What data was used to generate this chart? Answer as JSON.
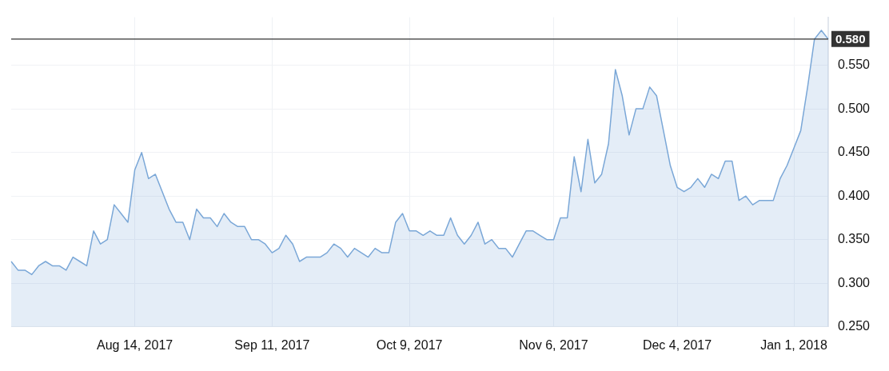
{
  "chart_data": {
    "type": "area",
    "categories": [
      null,
      null,
      null,
      null,
      null,
      null,
      null,
      null,
      null,
      null,
      null,
      null,
      null,
      null,
      null,
      null,
      null,
      null,
      "Aug 14, 2017",
      null,
      null,
      null,
      null,
      null,
      null,
      null,
      null,
      null,
      null,
      null,
      null,
      null,
      null,
      null,
      null,
      null,
      null,
      null,
      "Sep 11, 2017",
      null,
      null,
      null,
      null,
      null,
      null,
      null,
      null,
      null,
      null,
      null,
      null,
      null,
      null,
      null,
      null,
      null,
      null,
      null,
      "Oct 9, 2017",
      null,
      null,
      null,
      null,
      null,
      null,
      null,
      null,
      null,
      null,
      null,
      null,
      null,
      null,
      null,
      null,
      null,
      null,
      null,
      null,
      "Nov 6, 2017",
      null,
      null,
      null,
      null,
      null,
      null,
      null,
      null,
      null,
      null,
      null,
      null,
      null,
      null,
      null,
      null,
      null,
      "Dec 4, 2017",
      null,
      null,
      null,
      null,
      null,
      null,
      null,
      null,
      null,
      null,
      null,
      null,
      null,
      null,
      null,
      null,
      "Jan 1, 2018",
      null,
      null,
      null,
      null,
      null
    ],
    "series": [
      {
        "color": "#7aa7d7",
        "values": [
          0.325,
          0.315,
          0.315,
          0.31,
          0.32,
          0.325,
          0.32,
          0.32,
          0.315,
          0.33,
          0.325,
          0.32,
          0.36,
          0.345,
          0.35,
          0.39,
          0.38,
          0.37,
          0.43,
          0.45,
          0.42,
          0.425,
          0.405,
          0.385,
          0.37,
          0.37,
          0.35,
          0.385,
          0.375,
          0.375,
          0.365,
          0.38,
          0.37,
          0.365,
          0.365,
          0.35,
          0.35,
          0.345,
          0.335,
          0.34,
          0.355,
          0.345,
          0.325,
          0.33,
          0.33,
          0.33,
          0.335,
          0.345,
          0.34,
          0.33,
          0.34,
          0.335,
          0.33,
          0.34,
          0.335,
          0.335,
          0.37,
          0.38,
          0.36,
          0.36,
          0.355,
          0.36,
          0.355,
          0.355,
          0.375,
          0.355,
          0.345,
          0.355,
          0.37,
          0.345,
          0.35,
          0.34,
          0.34,
          0.33,
          0.345,
          0.36,
          0.36,
          0.355,
          0.35,
          0.35,
          0.375,
          0.375,
          0.445,
          0.405,
          0.465,
          0.415,
          0.425,
          0.46,
          0.545,
          0.515,
          0.47,
          0.5,
          0.5,
          0.525,
          0.515,
          0.475,
          0.435,
          0.41,
          0.405,
          0.41,
          0.42,
          0.41,
          0.425,
          0.42,
          0.44,
          0.44,
          0.395,
          0.4,
          0.39,
          0.395,
          0.395,
          0.395,
          0.42,
          0.435,
          0.455,
          0.475,
          0.525,
          0.58,
          0.59,
          0.58
        ]
      }
    ],
    "ylim": [
      0.25,
      0.605
    ],
    "yticks": [
      {
        "value": 0.25,
        "label": "0.250"
      },
      {
        "value": 0.3,
        "label": "0.300"
      },
      {
        "value": 0.35,
        "label": "0.350"
      },
      {
        "value": 0.4,
        "label": "0.400"
      },
      {
        "value": 0.45,
        "label": "0.450"
      },
      {
        "value": 0.5,
        "label": "0.500"
      },
      {
        "value": 0.55,
        "label": "0.550"
      }
    ],
    "ref_lines": [
      {
        "axis": "y",
        "value": 0.58,
        "label": "0.580",
        "color": "#333333"
      }
    ],
    "grid": true,
    "legend": false,
    "marker": "none",
    "line_style": "solid"
  }
}
